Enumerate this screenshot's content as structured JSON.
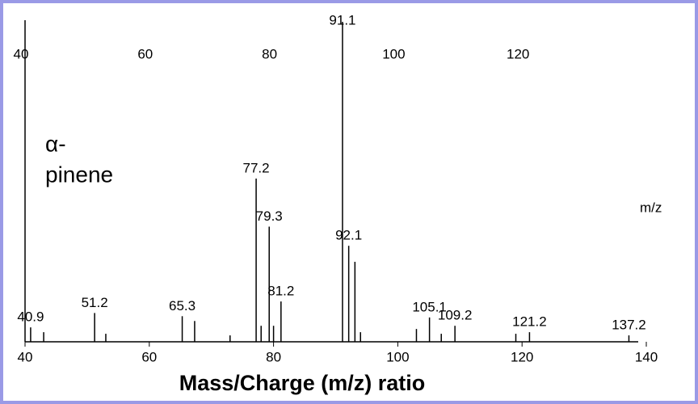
{
  "chart_data": {
    "type": "stem",
    "x_label": "Mass/Charge (m/z) ratio",
    "unit_label": "m/z",
    "annotation_lines": [
      "α-",
      "pinene"
    ],
    "x": [
      40.9,
      43,
      51.2,
      53,
      65.3,
      67.3,
      73,
      77.2,
      78,
      79.3,
      80,
      81.2,
      91.1,
      92.1,
      93.1,
      94,
      103,
      105.1,
      107,
      109.2,
      119,
      121.2,
      137.2
    ],
    "values": [
      4.5,
      3,
      9,
      2.5,
      8,
      6.5,
      2,
      51,
      5,
      36,
      5,
      12.6,
      100,
      30,
      25,
      3,
      4,
      7.6,
      2.5,
      5,
      2.5,
      3,
      2
    ],
    "peak_labels": [
      "40.9",
      null,
      "51.2",
      null,
      "65.3",
      null,
      null,
      "77.2",
      null,
      "79.3",
      null,
      "81.2",
      "91.1",
      "92.1",
      null,
      null,
      null,
      "105.1",
      null,
      "109.2",
      null,
      "121.2",
      "137.2"
    ],
    "color": "#000000",
    "xlim": [
      40,
      140
    ],
    "ylim": [
      0,
      100
    ],
    "xticks": [
      40,
      60,
      80,
      100,
      120,
      140
    ],
    "x2ticks": [
      40,
      60,
      80,
      100,
      120
    ]
  }
}
